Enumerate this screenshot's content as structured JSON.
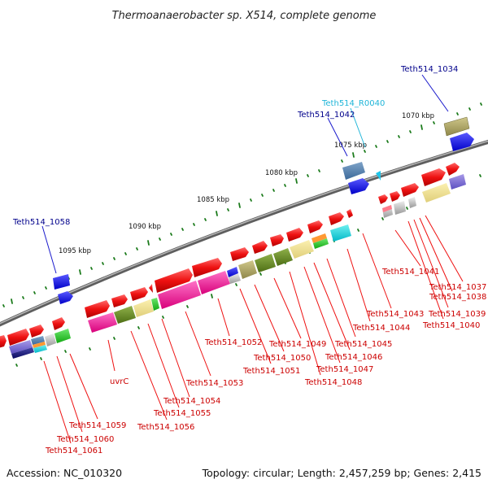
{
  "title": "Thermoanaerobacter sp. X514, complete genome",
  "footer": {
    "accession": "Accession: NC_010320",
    "topology": "Topology: circular; Length: 2,457,259 bp; Genes: 2,415"
  },
  "scale_labels": [
    "1070 kbp",
    "1075 kbp",
    "1080 kbp",
    "1085 kbp",
    "1090 kbp",
    "1095 kbp"
  ],
  "labels_red": [
    "Teth514_1037",
    "Teth514_1038",
    "Teth514_1039",
    "Teth514_1040",
    "Teth514_1041",
    "Teth514_1043",
    "Teth514_1044",
    "Teth514_1045",
    "Teth514_1046",
    "Teth514_1047",
    "Teth514_1048",
    "Teth514_1049",
    "Teth514_1050",
    "Teth514_1051",
    "Teth514_1052",
    "Teth514_1053",
    "Teth514_1054",
    "Teth514_1055",
    "Teth514_1056",
    "uvrC",
    "Teth514_1059",
    "Teth514_1060",
    "Teth514_1061"
  ],
  "labels_blue": [
    "Teth514_1034",
    "Teth514_1042",
    "Teth514_1058"
  ],
  "labels_cyan": [
    "Teth514_R0040"
  ],
  "colors": {
    "gene_forward": "#ee1111",
    "label_red": "#cc0000",
    "label_blue": "#00008b",
    "label_cyan": "#1fb5d8",
    "backbone": "#7a7a7a",
    "tick": "#1a7a1a"
  }
}
